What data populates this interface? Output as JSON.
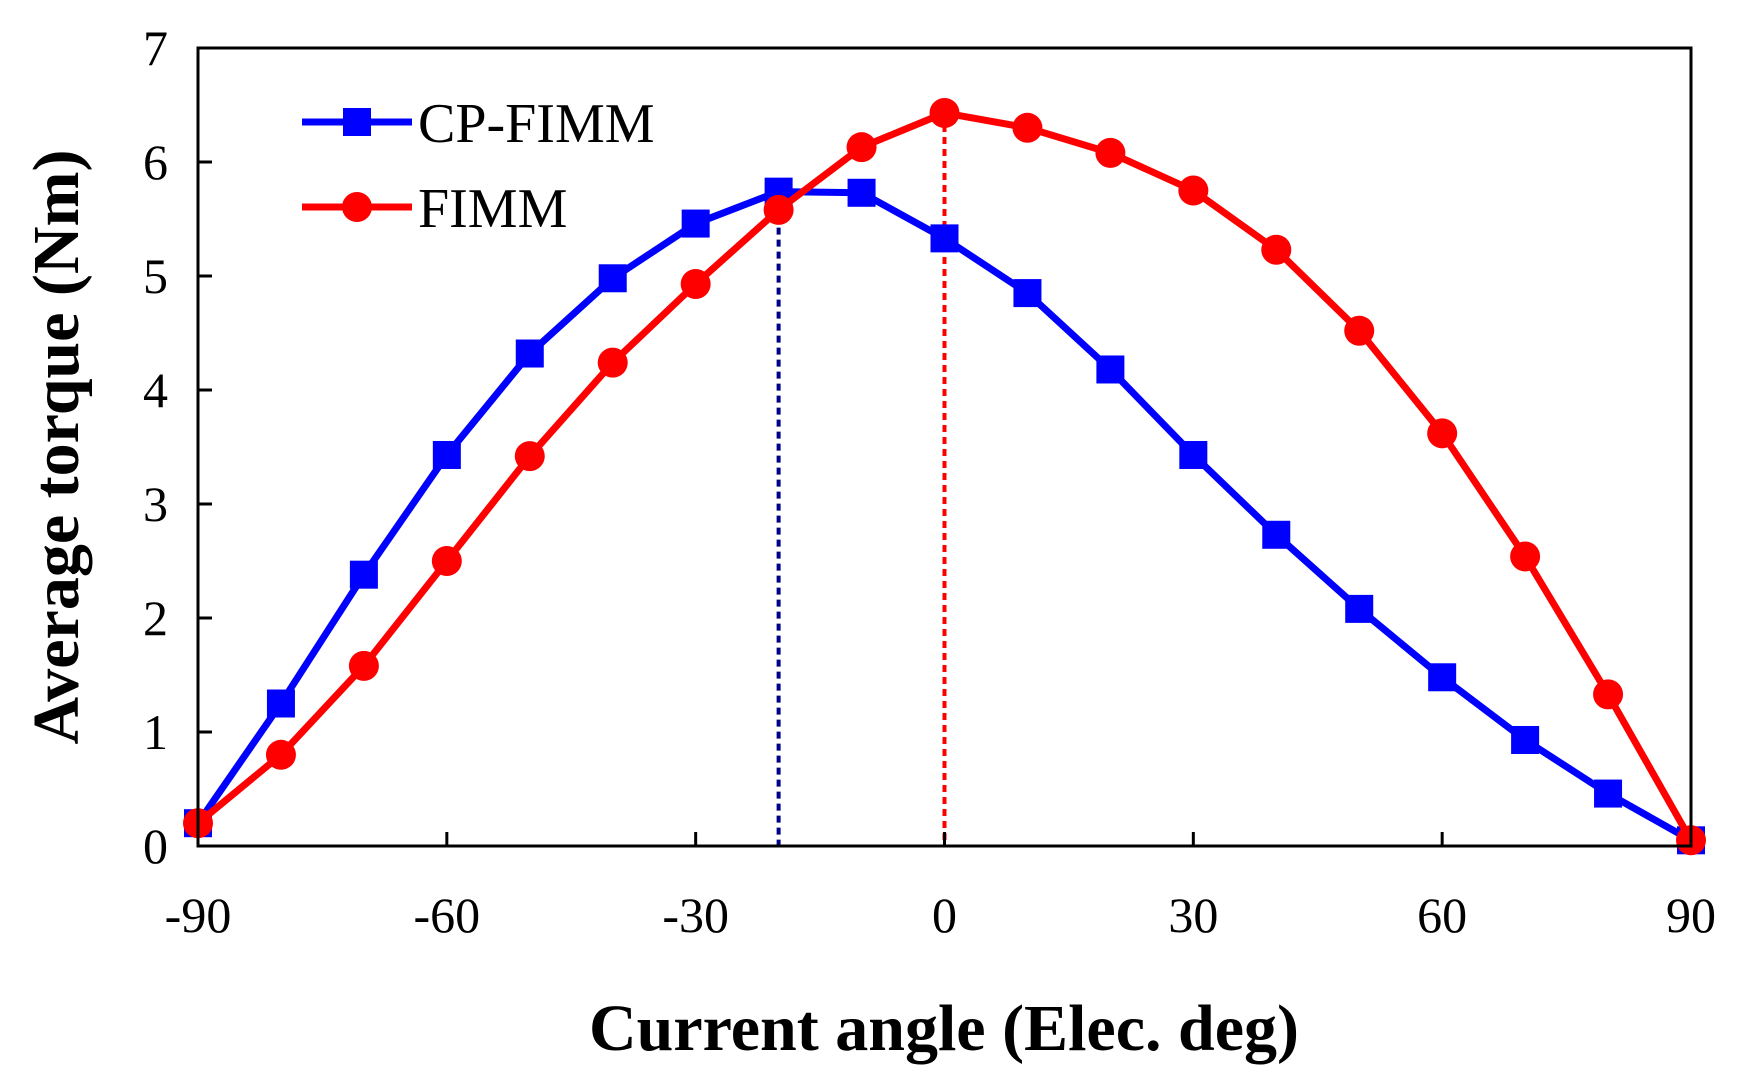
{
  "chart_data": {
    "type": "line",
    "title": "",
    "xlabel": "Current angle (Elec. deg)",
    "ylabel": "Average torque (Nm)",
    "xlim": [
      -90,
      90
    ],
    "ylim": [
      0,
      7
    ],
    "xticks": [
      -90,
      -60,
      -30,
      0,
      30,
      60,
      90
    ],
    "yticks": [
      0,
      1,
      2,
      3,
      4,
      5,
      6,
      7
    ],
    "grid": false,
    "legend_position": "top-left",
    "x": [
      -90,
      -80,
      -70,
      -60,
      -50,
      -40,
      -30,
      -20,
      -10,
      0,
      10,
      20,
      30,
      40,
      50,
      60,
      70,
      80,
      90
    ],
    "series": [
      {
        "name": "CP-FIMM",
        "color": "#0000ff",
        "marker": "square",
        "values": [
          0.2,
          1.25,
          2.38,
          3.43,
          4.32,
          4.98,
          5.46,
          5.74,
          5.73,
          5.33,
          4.85,
          4.18,
          3.43,
          2.73,
          2.08,
          1.48,
          0.93,
          0.46,
          0.05
        ]
      },
      {
        "name": "FIMM",
        "color": "#ff0000",
        "marker": "circle",
        "values": [
          0.2,
          0.8,
          1.58,
          2.5,
          3.42,
          4.24,
          4.93,
          5.58,
          6.13,
          6.43,
          6.3,
          6.08,
          5.75,
          5.23,
          4.52,
          3.62,
          2.54,
          1.33,
          0.05
        ]
      }
    ],
    "reference_lines": [
      {
        "x": -20,
        "color": "#00008b",
        "style": "dotted",
        "series": "CP-FIMM"
      },
      {
        "x": 0,
        "color": "#ff0000",
        "style": "dotted",
        "series": "FIMM"
      }
    ]
  }
}
